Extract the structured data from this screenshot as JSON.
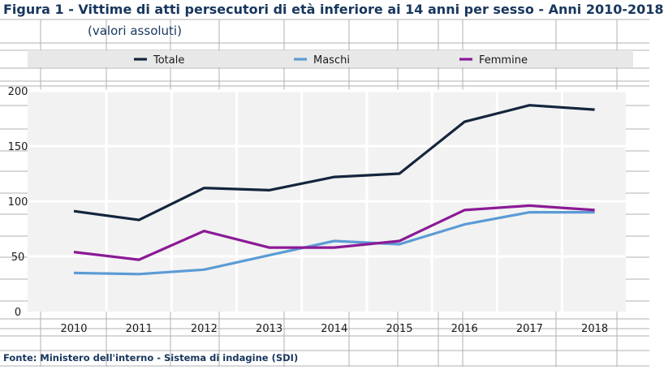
{
  "header": {
    "title": "Figura 1 - Vittime di atti persecutori di età inferiore ai 14 anni per sesso - Anni 2010-2018",
    "subtitle": "(valori assoluti)"
  },
  "footer": {
    "source": "Fonte: Ministero dell'interno - Sistema di indagine (SDI)"
  },
  "colors": {
    "title_text": "#17365d",
    "plot_background": "#f2f2f2",
    "legend_background": "#e8e8e8",
    "sheet_grid": "#b0b0b0"
  },
  "chart_data": {
    "type": "line",
    "title": "Vittime di atti persecutori di età inferiore ai 14 anni per sesso - Anni 2010-2018",
    "xlabel": "",
    "ylabel": "",
    "categories": [
      "2010",
      "2011",
      "2012",
      "2013",
      "2014",
      "2015",
      "2016",
      "2017",
      "2018"
    ],
    "ylim": [
      0,
      200
    ],
    "yticks": [
      0,
      50,
      100,
      150,
      200
    ],
    "grid": true,
    "legend_position": "top",
    "series": [
      {
        "name": "Totale",
        "color": "#14253d",
        "values": [
          91,
          83,
          112,
          110,
          122,
          125,
          172,
          187,
          183
        ]
      },
      {
        "name": "Maschi",
        "color": "#5b9bd5",
        "values": [
          35,
          34,
          38,
          51,
          64,
          61,
          79,
          90,
          90
        ]
      },
      {
        "name": "Femmine",
        "color": "#8b1a96",
        "values": [
          54,
          47,
          73,
          58,
          58,
          64,
          92,
          96,
          92
        ]
      }
    ]
  }
}
